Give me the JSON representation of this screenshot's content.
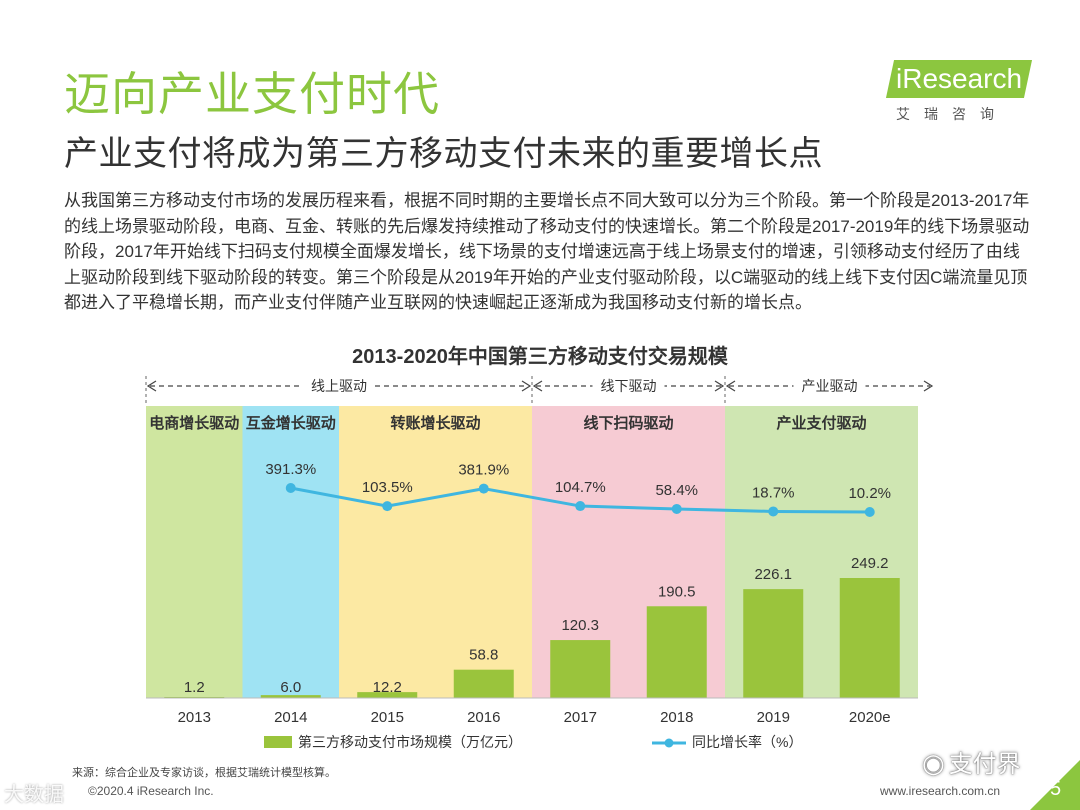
{
  "header": {
    "title": "迈向产业支付时代",
    "subtitle": "产业支付将成为第三方移动支付未来的重要增长点",
    "logo_text": "iResearch",
    "logo_cn": "艾瑞咨询"
  },
  "paragraph": "从我国第三方移动支付市场的发展历程来看，根据不同时期的主要增长点不同大致可以分为三个阶段。第一个阶段是2013-2017年的线上场景驱动阶段，电商、互金、转账的先后爆发持续推动了移动支付的快速增长。第二个阶段是2017-2019年的线下场景驱动阶段，2017年开始线下扫码支付规模全面爆发增长，线下场景的支付增速远高于线上场景支付的增速，引领移动支付经历了由线上驱动阶段到线下驱动阶段的转变。第三个阶段是从2019年开始的产业支付驱动阶段，以C端驱动的线上线下支付因C端流量见顶都进入了平稳增长期，而产业支付伴随产业互联网的快速崛起正逐渐成为我国移动支付新的增长点。",
  "chart_data": {
    "type": "bar+line",
    "title": "2013-2020年中国第三方移动支付交易规模",
    "categories": [
      "2013",
      "2014",
      "2015",
      "2016",
      "2017",
      "2018",
      "2019",
      "2020e"
    ],
    "series": [
      {
        "name": "第三方移动支付市场规模（万亿元）",
        "type": "bar",
        "color": "#9ac43c",
        "values": [
          1.2,
          6.0,
          12.2,
          58.8,
          120.3,
          190.5,
          226.1,
          249.2
        ],
        "labels": [
          "1.2",
          "6.0",
          "12.2",
          "58.8",
          "120.3",
          "190.5",
          "226.1",
          "249.2"
        ]
      },
      {
        "name": "同比增长率（%）",
        "type": "line",
        "color": "#3fb6e0",
        "values": [
          null,
          391.3,
          103.5,
          381.9,
          104.7,
          58.4,
          18.7,
          10.2
        ],
        "labels": [
          "",
          "391.3%",
          "103.5%",
          "381.9%",
          "104.7%",
          "58.4%",
          "18.7%",
          "10.2%"
        ]
      }
    ],
    "phases": [
      {
        "label": "电商增长驱动",
        "start": 0,
        "end": 0,
        "color": "#cfe6a0"
      },
      {
        "label": "互金增长驱动",
        "start": 1,
        "end": 1,
        "color": "#9fe3f3"
      },
      {
        "label": "转账增长驱动",
        "start": 2,
        "end": 3,
        "color": "#fce9a3"
      },
      {
        "label": "线下扫码驱动",
        "start": 4,
        "end": 5,
        "color": "#f6cbd3"
      },
      {
        "label": "产业支付驱动",
        "start": 6,
        "end": 7,
        "color": "#cfe6b2"
      }
    ],
    "stages": [
      {
        "label": "线上驱动",
        "start": 0,
        "end": 4
      },
      {
        "label": "线下驱动",
        "start": 4,
        "end": 6
      },
      {
        "label": "产业驱动",
        "start": 6,
        "end": 7
      }
    ]
  },
  "footer": {
    "source": "来源：综合企业及专家访谈，根据艾瑞统计模型核算。",
    "copyright": "©2020.4 iResearch Inc.",
    "url": "www.iresearch.com.cn",
    "page": "5",
    "watermark_left": "大数据",
    "watermark_right": "支付界"
  }
}
